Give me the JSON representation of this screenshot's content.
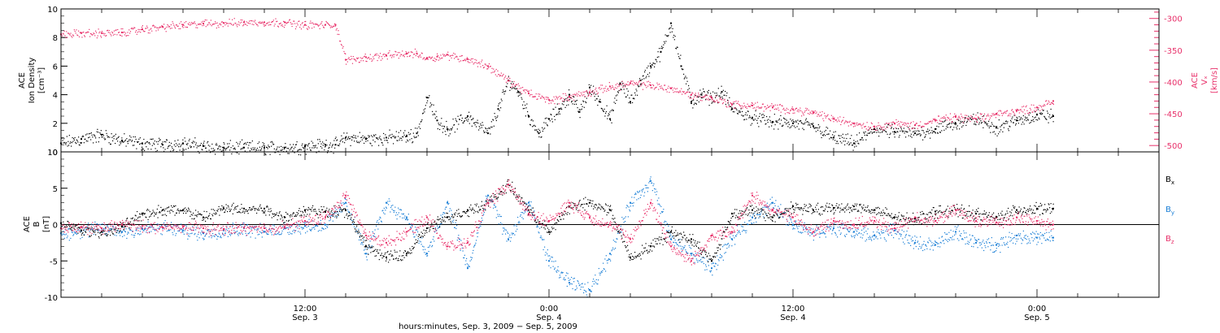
{
  "colors": {
    "black": "#000000",
    "pink": "#e8306a",
    "blue": "#1a7fd6"
  },
  "x_axis": {
    "caption": "hours:minutes, Sep.  3, 2009 − Sep.  5, 2009",
    "range_hours": [
      0,
      54
    ],
    "ticks": [
      {
        "h": 12,
        "time": "12:00",
        "date": "Sep. 3"
      },
      {
        "h": 24,
        "time": "0:00",
        "date": "Sep. 4"
      },
      {
        "h": 36,
        "time": "12:00",
        "date": "Sep. 4"
      },
      {
        "h": 48,
        "time": "0:00",
        "date": "Sep. 5"
      }
    ]
  },
  "chart_data": [
    {
      "type": "scatter",
      "ylabel_left": [
        "ACE",
        "Ion Density",
        "[cm⁻³]"
      ],
      "ylabel_right": [
        "ACE",
        "Vₓ",
        "[km/s]"
      ],
      "ylim_left": [
        0,
        10
      ],
      "ylim_right": [
        -510,
        -285
      ],
      "left_ticks": [
        0,
        2,
        4,
        6,
        8,
        10
      ],
      "right_ticks": [
        -300,
        -350,
        -400,
        -450,
        -500
      ],
      "series": [
        {
          "name": "Ion Density",
          "axis": "left",
          "color": "#000000",
          "x": [
            0,
            1,
            2,
            3,
            4,
            5,
            6,
            7,
            8,
            9,
            10,
            11,
            12,
            13,
            13.5,
            14,
            15,
            16,
            17,
            17.5,
            18,
            18.5,
            19,
            20,
            21,
            21.5,
            22,
            22.5,
            23,
            23.5,
            24,
            24.5,
            25,
            25.5,
            26,
            26.5,
            27,
            27.5,
            28,
            28.5,
            29,
            29.5,
            30,
            30.5,
            31,
            31.5,
            32,
            32.5,
            33,
            34,
            35,
            36,
            37,
            38,
            39,
            40,
            41,
            42,
            43,
            44,
            45,
            46,
            47,
            48,
            48.8
          ],
          "y": [
            0.6,
            0.9,
            1.2,
            0.8,
            0.6,
            0.5,
            0.6,
            0.4,
            0.3,
            0.3,
            0.3,
            0.3,
            0.4,
            0.5,
            0.5,
            1.0,
            0.9,
            1.0,
            1.1,
            1.3,
            3.8,
            2.2,
            1.6,
            2.5,
            1.3,
            3.0,
            5.0,
            4.2,
            2.5,
            1.3,
            2.3,
            3.0,
            4.0,
            2.8,
            4.5,
            3.5,
            2.3,
            4.8,
            3.5,
            5.0,
            6.0,
            7.0,
            9.0,
            6.0,
            3.5,
            4.0,
            3.8,
            4.2,
            3.0,
            2.4,
            2.1,
            2.0,
            1.8,
            1.0,
            0.6,
            1.6,
            1.4,
            1.3,
            1.6,
            2.0,
            2.3,
            1.7,
            2.2,
            2.6,
            2.5
          ]
        },
        {
          "name": "Vx",
          "axis": "right",
          "color": "#e8306a",
          "x": [
            0,
            1,
            2,
            3,
            4,
            5,
            6,
            7,
            8,
            9,
            10,
            11,
            12,
            13,
            13.5,
            14,
            15,
            16,
            17,
            17.5,
            18,
            18.5,
            19,
            20,
            21,
            22,
            23,
            24,
            25,
            26,
            27,
            28,
            29,
            30,
            31,
            32,
            33,
            34,
            35,
            36,
            37,
            38,
            39,
            40,
            41,
            42,
            43,
            44,
            45,
            46,
            47,
            48,
            48.8
          ],
          "y": [
            -325,
            -323,
            -323,
            -322,
            -317,
            -313,
            -310,
            -308,
            -307,
            -306,
            -306,
            -306,
            -310,
            -310,
            -310,
            -365,
            -361,
            -358,
            -355,
            -355,
            -362,
            -360,
            -357,
            -364,
            -375,
            -398,
            -418,
            -428,
            -423,
            -416,
            -407,
            -402,
            -405,
            -410,
            -420,
            -425,
            -435,
            -437,
            -440,
            -443,
            -448,
            -458,
            -465,
            -470,
            -465,
            -468,
            -460,
            -455,
            -458,
            -450,
            -445,
            -440,
            -430
          ]
        }
      ]
    },
    {
      "type": "scatter",
      "ylabel_left": [
        "ACE",
        "B",
        "[nT]"
      ],
      "ylim": [
        -10,
        10
      ],
      "left_ticks": [
        -10,
        -5,
        0,
        5,
        10
      ],
      "zero_line": true,
      "legend_placement": "right",
      "series": [
        {
          "name": "Bx",
          "label_main": "B",
          "label_sub": "x",
          "color": "#000000",
          "x": [
            0,
            1,
            2,
            3,
            4,
            5,
            6,
            7,
            8,
            9,
            10,
            11,
            12,
            13,
            14,
            15,
            16,
            17,
            18,
            19,
            20,
            21,
            22,
            23,
            24,
            25,
            26,
            27,
            28,
            29,
            30,
            31,
            32,
            33,
            34,
            35,
            36,
            37,
            38,
            39,
            40,
            41,
            42,
            43,
            44,
            45,
            46,
            47,
            48,
            48.8
          ],
          "y": [
            0.2,
            -0.8,
            -1.0,
            -0.3,
            1.5,
            2.0,
            2.0,
            1.0,
            2.2,
            2.2,
            2.2,
            1.0,
            2.0,
            1.8,
            2.0,
            -3.0,
            -4.5,
            -4.0,
            -0.5,
            1.0,
            2.0,
            3.0,
            5.5,
            2.0,
            -1.0,
            2.5,
            3.0,
            2.0,
            -4.5,
            -3.0,
            -1.0,
            -2.0,
            -5.0,
            1.5,
            2.0,
            1.0,
            2.5,
            2.0,
            2.3,
            2.5,
            2.0,
            1.0,
            0.8,
            1.8,
            2.0,
            1.5,
            1.0,
            2.0,
            2.2,
            2.2
          ]
        },
        {
          "name": "By",
          "label_main": "B",
          "label_sub": "y",
          "color": "#1a7fd6",
          "x": [
            0,
            1,
            2,
            3,
            4,
            5,
            6,
            7,
            8,
            9,
            10,
            11,
            12,
            13,
            14,
            15,
            16,
            17,
            18,
            19,
            20,
            21,
            22,
            23,
            24,
            25,
            26,
            27,
            28,
            29,
            30,
            31,
            32,
            33,
            34,
            35,
            36,
            37,
            38,
            39,
            40,
            41,
            42,
            43,
            44,
            45,
            46,
            47,
            48,
            48.8
          ],
          "y": [
            -1.2,
            -0.8,
            -0.5,
            -1.0,
            -0.6,
            -0.4,
            -0.8,
            -1.2,
            -0.8,
            -0.5,
            -1.0,
            -0.5,
            -0.2,
            0.0,
            3.0,
            -4.0,
            3.0,
            1.0,
            -4.0,
            3.0,
            -6.0,
            4.0,
            -2.0,
            3.0,
            -5.0,
            -8.0,
            -9.0,
            -4.0,
            3.0,
            6.0,
            -2.0,
            -4.0,
            -6.0,
            -2.0,
            1.0,
            3.0,
            0.0,
            -1.0,
            -0.5,
            -1.0,
            -1.5,
            -0.8,
            -2.5,
            -2.8,
            -1.0,
            -2.5,
            -2.8,
            -1.5,
            -1.8,
            -1.8
          ]
        },
        {
          "name": "Bz",
          "label_main": "B",
          "label_sub": "z",
          "color": "#e8306a",
          "x": [
            0,
            1,
            2,
            3,
            4,
            5,
            6,
            7,
            8,
            9,
            10,
            11,
            12,
            13,
            14,
            15,
            16,
            17,
            18,
            19,
            20,
            21,
            22,
            23,
            24,
            25,
            26,
            27,
            28,
            29,
            30,
            31,
            32,
            33,
            34,
            35,
            36,
            37,
            38,
            39,
            40,
            41,
            42,
            43,
            44,
            45,
            46,
            47,
            48,
            48.8
          ],
          "y": [
            -0.5,
            -0.3,
            -0.5,
            0.0,
            -0.2,
            -0.4,
            -0.3,
            -0.5,
            -0.6,
            -0.4,
            -0.5,
            -0.3,
            0.5,
            1.0,
            4.0,
            -1.5,
            -2.5,
            -1.0,
            1.0,
            -3.0,
            -2.5,
            3.0,
            5.5,
            1.5,
            0.5,
            3.0,
            1.0,
            0.0,
            -2.0,
            3.0,
            -3.0,
            -5.0,
            -1.5,
            -1.0,
            4.0,
            2.0,
            1.0,
            -1.0,
            0.5,
            0.0,
            0.5,
            -0.5,
            1.0,
            0.5,
            2.0,
            0.5,
            0.3,
            1.0,
            0.5,
            0.0
          ]
        }
      ]
    }
  ]
}
